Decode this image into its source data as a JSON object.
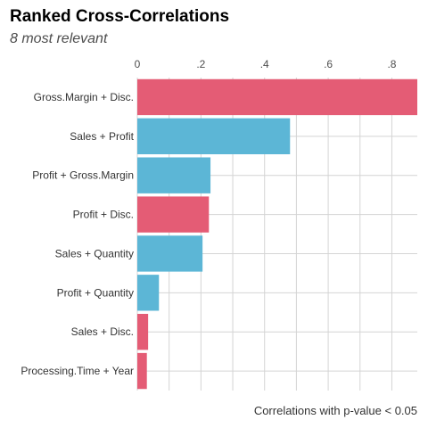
{
  "chart_data": {
    "type": "bar",
    "orientation": "horizontal",
    "title": "Ranked Cross-Correlations",
    "subtitle": "8 most relevant",
    "caption": "Correlations with p-value < 0.05",
    "xaxis_position": "top",
    "xlim": [
      0,
      0.88
    ],
    "xticks": [
      0,
      0.2,
      0.4,
      0.6,
      0.8
    ],
    "xtick_labels": [
      "0",
      ".2",
      ".4",
      ".6",
      ".8"
    ],
    "categories": [
      "Gross.Margin + Disc.",
      "Sales + Profit",
      "Profit + Gross.Margin",
      "Profit + Disc.",
      "Sales + Quantity",
      "Profit + Quantity",
      "Sales + Disc.",
      "Processing.Time + Year"
    ],
    "values": [
      0.88,
      0.48,
      0.23,
      0.225,
      0.205,
      0.068,
      0.034,
      0.03
    ],
    "sign": [
      "negative",
      "positive",
      "positive",
      "negative",
      "positive",
      "positive",
      "negative",
      "negative"
    ],
    "grid": true,
    "legend": "none"
  },
  "colors": {
    "negative": "#e45c75",
    "positive": "#5cb6d6",
    "grid": "#d4d4d4"
  }
}
